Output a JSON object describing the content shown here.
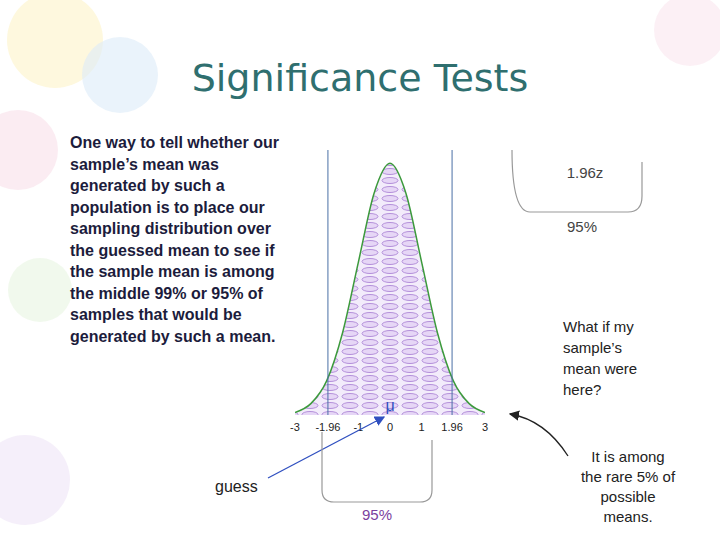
{
  "title": "Significance Tests",
  "body": "One way to tell whether our sample’s mean was generated by such a population is to place our sampling distribution over the guessed mean to see if the sample mean is among the middle 99% or 95% of samples that would be generated by such a mean.",
  "chart_data": {
    "type": "area",
    "x": [
      -3,
      -2.5,
      -2,
      -1.5,
      -1,
      -0.5,
      0,
      0.5,
      1,
      1.5,
      2,
      2.5,
      3
    ],
    "values": [
      0.004,
      0.018,
      0.054,
      0.13,
      0.242,
      0.352,
      0.399,
      0.352,
      0.242,
      0.13,
      0.054,
      0.018,
      0.004
    ],
    "xlim": [
      -3,
      3
    ],
    "xticks": [
      -3,
      -1.96,
      -1,
      0,
      1,
      1.96,
      3
    ],
    "ylim": [
      0,
      0.42
    ],
    "tick_labels": "x",
    "color": "#3c9a3c",
    "critical_values": [
      -1.96,
      1.96
    ],
    "mean": 0,
    "mean_label": "μ"
  },
  "annotations": {
    "guess_label": "guess",
    "upper_brace_label": "1.96z",
    "upper_brace_percent": "95%",
    "question": "What if my sample’s mean were here?",
    "answer": "It is among the rare 5% of possible means.",
    "lower_brace_percent": "95%"
  }
}
